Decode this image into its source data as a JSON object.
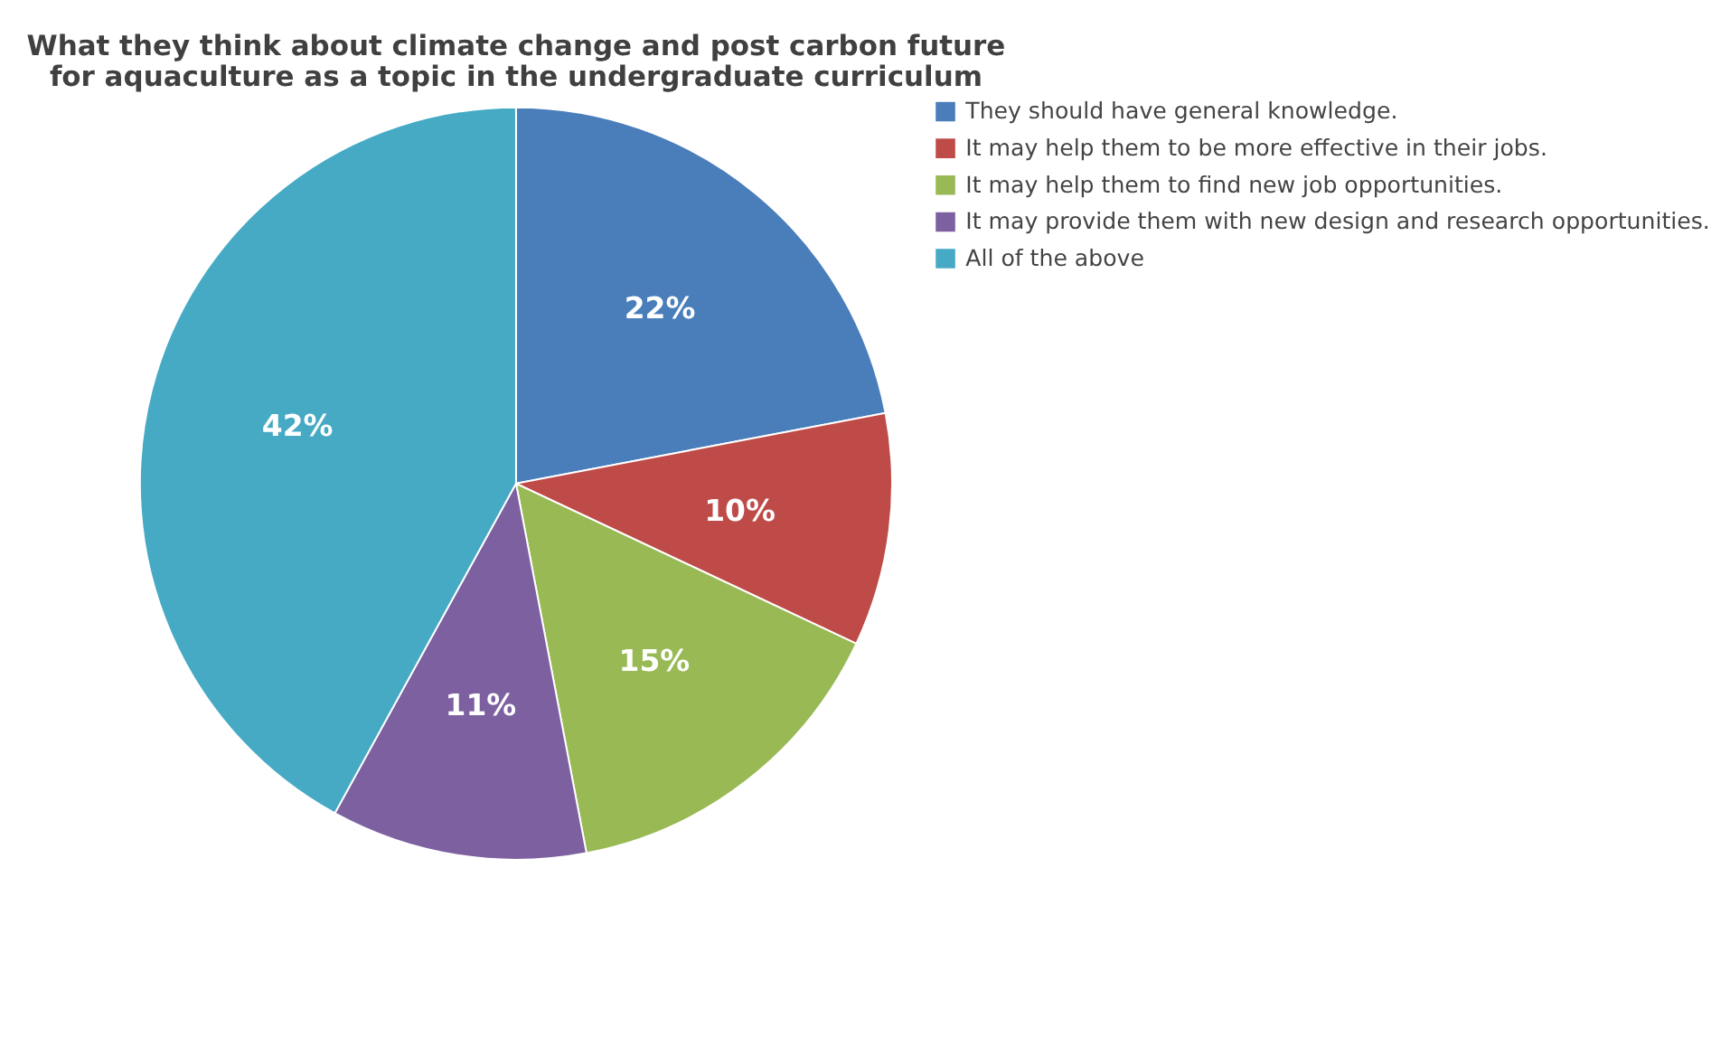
{
  "chart_data": {
    "type": "pie",
    "title": "What they think about climate change and post carbon future for aquaculture as a topic in the undergraduate curriculum",
    "categories": [
      "They should have general knowledge.",
      "It may help them to be more effective in their jobs.",
      "It may help them to find new job opportunities.",
      "It may provide them with new design and research opportunities.",
      "All of the above"
    ],
    "values": [
      22,
      10,
      15,
      11,
      42
    ],
    "colors": [
      "#4a7ebb",
      "#be4b48",
      "#98b954",
      "#7d60a0",
      "#46aac5"
    ],
    "value_labels": [
      "22%",
      "10%",
      "15%",
      "11%",
      "42%"
    ],
    "legend": "right"
  }
}
